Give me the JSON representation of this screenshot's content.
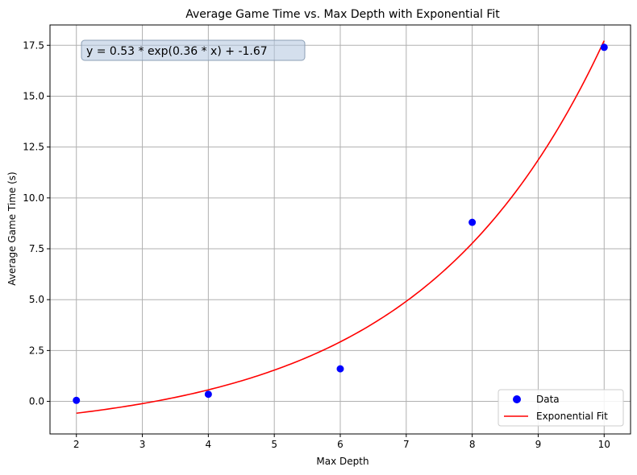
{
  "chart_data": {
    "type": "scatter",
    "title": "Average Game Time vs. Max Depth with Exponential Fit",
    "xlabel": "Max Depth",
    "ylabel": "Average Game Time (s)",
    "xlim": [
      1.6,
      10.4
    ],
    "ylim": [
      -1.6,
      18.5
    ],
    "xticks": [
      2,
      3,
      4,
      5,
      6,
      7,
      8,
      9,
      10
    ],
    "xtick_labels": [
      "2",
      "3",
      "4",
      "5",
      "6",
      "7",
      "8",
      "9",
      "10"
    ],
    "yticks": [
      0.0,
      2.5,
      5.0,
      7.5,
      10.0,
      12.5,
      15.0,
      17.5
    ],
    "ytick_labels": [
      "0.0",
      "2.5",
      "5.0",
      "7.5",
      "10.0",
      "12.5",
      "15.0",
      "17.5"
    ],
    "grid": true,
    "legend_position": "lower-right",
    "series": [
      {
        "name": "Data",
        "kind": "scatter",
        "color": "#0000ff",
        "x": [
          2,
          4,
          6,
          8,
          10
        ],
        "y": [
          0.05,
          0.35,
          1.6,
          8.8,
          17.4
        ]
      },
      {
        "name": "Exponential Fit",
        "kind": "line",
        "color": "#ff0000",
        "model": {
          "a": 0.53,
          "b": 0.36,
          "c": -1.67,
          "x_range": [
            2,
            10
          ]
        }
      }
    ],
    "annotation": "y = 0.53 * exp(0.36 * x) + -1.67"
  }
}
